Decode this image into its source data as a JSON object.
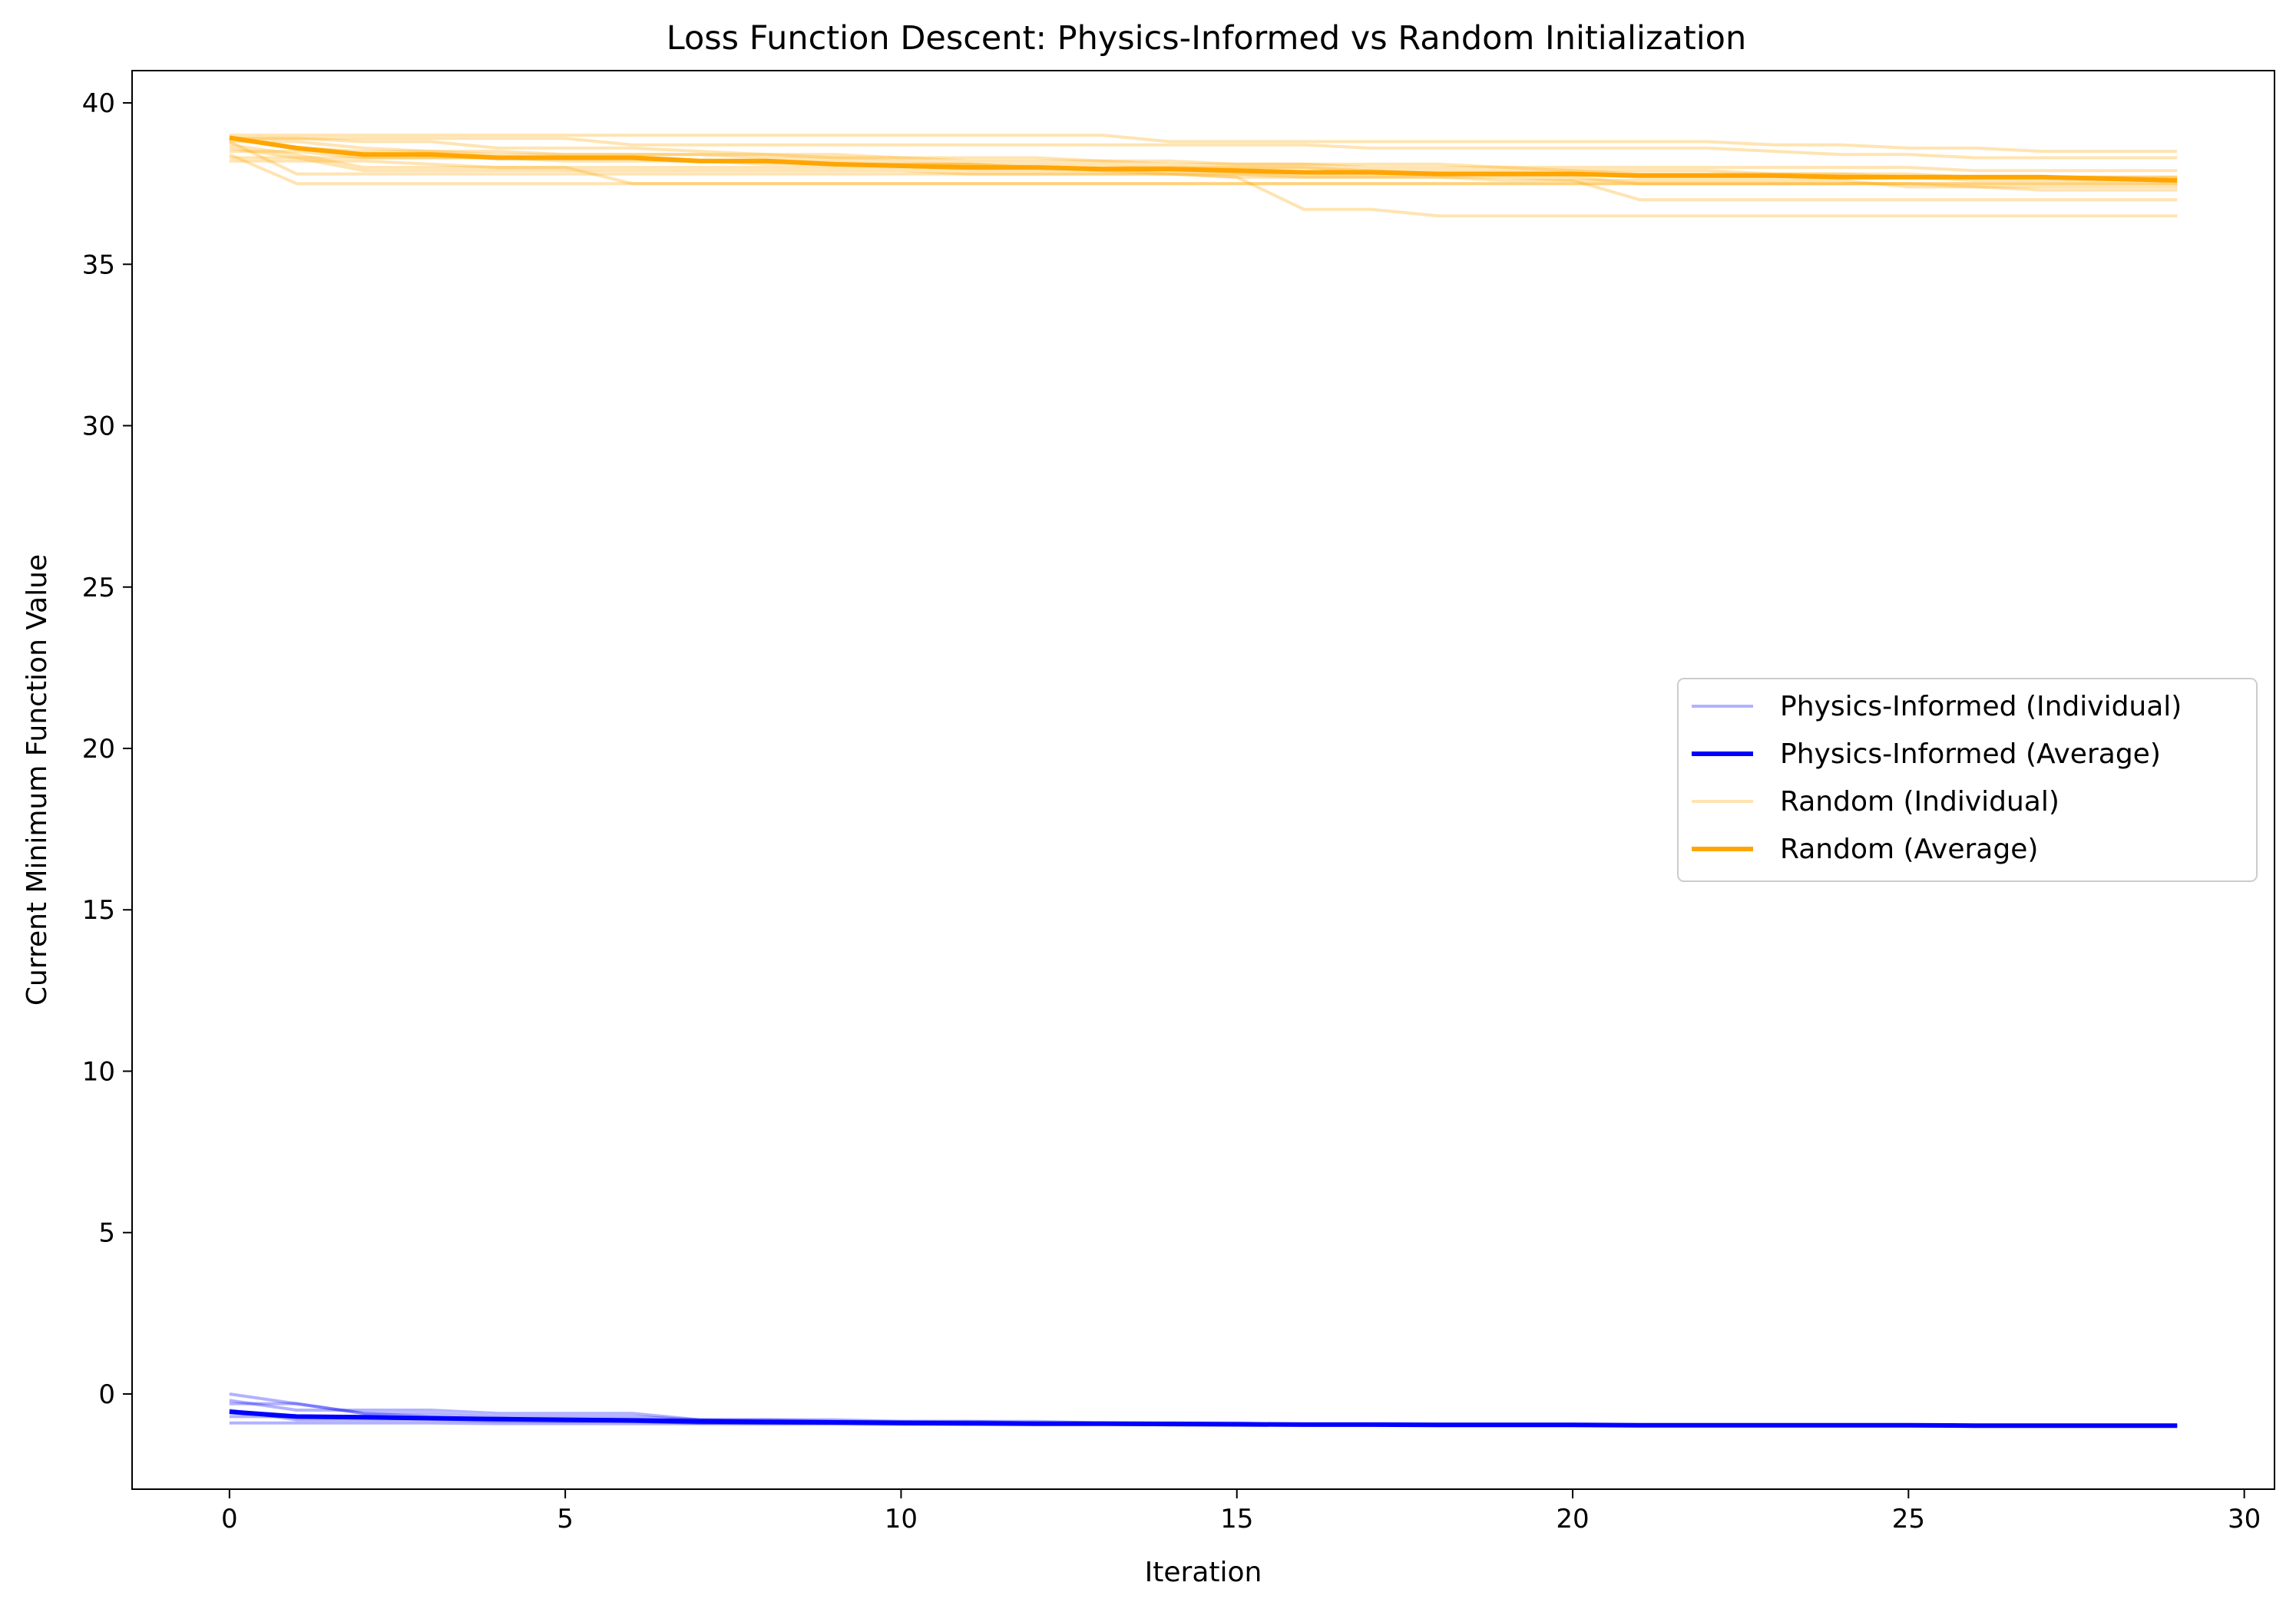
{
  "chart_data": {
    "type": "line",
    "title": "Loss Function Descent: Physics-Informed vs Random Initialization",
    "xlabel": "Iteration",
    "ylabel": "Current Minimum Function Value",
    "xlim": [
      -1.45,
      30.45
    ],
    "ylim": [
      -2.95,
      41.0
    ],
    "xticks": [
      0,
      5,
      10,
      15,
      20,
      25,
      30
    ],
    "yticks": [
      0,
      5,
      10,
      15,
      20,
      25,
      30,
      35,
      40
    ],
    "grid": false,
    "legend_position": "center-right",
    "colors": {
      "physics": "#0000ff",
      "physics_individual": "#aab0ff",
      "random": "#ffa500",
      "random_individual": "#ffdfa6"
    },
    "legend": [
      {
        "label": "Physics-Informed (Individual)",
        "series": "physics_individual"
      },
      {
        "label": "Physics-Informed (Average)",
        "series": "physics_average"
      },
      {
        "label": "Random (Individual)",
        "series": "random_individual"
      },
      {
        "label": "Random (Average)",
        "series": "random_average"
      }
    ],
    "x": [
      0,
      1,
      2,
      3,
      4,
      5,
      6,
      7,
      8,
      9,
      10,
      11,
      12,
      13,
      14,
      15,
      16,
      17,
      18,
      19,
      20,
      21,
      22,
      23,
      24,
      25,
      26,
      27,
      28,
      29
    ],
    "series": [
      {
        "name": "Random (Individual)",
        "group": "random_individual",
        "values": [
          39.0,
          39.0,
          39.0,
          39.0,
          39.0,
          39.0,
          39.0,
          39.0,
          39.0,
          39.0,
          39.0,
          39.0,
          39.0,
          39.0,
          38.8,
          38.8,
          38.8,
          38.8,
          38.8,
          38.8,
          38.8,
          38.8,
          38.8,
          38.7,
          38.7,
          38.6,
          38.6,
          38.5,
          38.5,
          38.5
        ]
      },
      {
        "name": "Random (Individual)",
        "group": "random_individual",
        "values": [
          38.9,
          38.9,
          38.9,
          38.9,
          38.9,
          38.9,
          38.7,
          38.7,
          38.7,
          38.7,
          38.7,
          38.7,
          38.7,
          38.7,
          38.7,
          38.7,
          38.7,
          38.6,
          38.6,
          38.6,
          38.6,
          38.6,
          38.6,
          38.5,
          38.4,
          38.4,
          38.3,
          38.3,
          38.3,
          38.3
        ]
      },
      {
        "name": "Random (Individual)",
        "group": "random_individual",
        "values": [
          38.8,
          38.8,
          38.6,
          38.5,
          38.4,
          38.4,
          38.4,
          38.4,
          38.4,
          38.4,
          38.3,
          38.3,
          38.3,
          38.2,
          38.2,
          38.1,
          38.1,
          38.1,
          38.1,
          38.0,
          38.0,
          38.0,
          38.0,
          38.0,
          38.0,
          38.0,
          37.9,
          37.9,
          37.9,
          37.9
        ]
      },
      {
        "name": "Random (Individual)",
        "group": "random_individual",
        "values": [
          38.6,
          38.3,
          38.3,
          38.3,
          38.3,
          38.3,
          38.3,
          38.2,
          38.2,
          38.2,
          38.1,
          38.1,
          38.1,
          38.1,
          38.0,
          38.0,
          38.0,
          37.9,
          37.9,
          37.9,
          37.9,
          37.8,
          37.8,
          37.8,
          37.8,
          37.7,
          37.7,
          37.7,
          37.7,
          37.7
        ]
      },
      {
        "name": "Random (Individual)",
        "group": "random_individual",
        "values": [
          38.2,
          38.2,
          38.2,
          38.1,
          38.0,
          38.0,
          38.0,
          38.0,
          38.0,
          38.0,
          38.0,
          37.9,
          37.9,
          37.9,
          37.9,
          37.8,
          37.8,
          37.8,
          37.8,
          37.8,
          37.8,
          37.7,
          37.7,
          37.7,
          37.7,
          37.7,
          37.6,
          37.6,
          37.6,
          37.6
        ]
      },
      {
        "name": "Random (Individual)",
        "group": "random_individual",
        "values": [
          38.4,
          37.5,
          37.5,
          37.5,
          37.5,
          37.5,
          37.5,
          37.5,
          37.5,
          37.5,
          37.5,
          37.5,
          37.5,
          37.5,
          37.5,
          37.5,
          37.5,
          37.5,
          37.5,
          37.5,
          37.5,
          37.5,
          37.5,
          37.5,
          37.5,
          37.5,
          37.5,
          37.5,
          37.5,
          37.5
        ]
      },
      {
        "name": "Random (Individual)",
        "group": "random_individual",
        "values": [
          38.7,
          38.4,
          38.0,
          38.0,
          38.0,
          38.0,
          37.5,
          37.5,
          37.5,
          37.5,
          37.5,
          37.5,
          37.5,
          37.5,
          37.5,
          37.5,
          37.5,
          37.5,
          37.5,
          37.5,
          37.5,
          37.5,
          37.5,
          37.5,
          37.5,
          37.5,
          37.5,
          37.5,
          37.5,
          37.5
        ]
      },
      {
        "name": "Random (Individual)",
        "group": "random_individual",
        "values": [
          38.9,
          38.9,
          38.8,
          38.8,
          38.6,
          38.6,
          38.6,
          38.5,
          38.4,
          38.3,
          38.2,
          38.1,
          38.0,
          37.9,
          37.8,
          37.7,
          36.7,
          36.7,
          36.5,
          36.5,
          36.5,
          36.5,
          36.5,
          36.5,
          36.5,
          36.5,
          36.5,
          36.5,
          36.5,
          36.5
        ]
      },
      {
        "name": "Random (Individual)",
        "group": "random_individual",
        "values": [
          38.5,
          38.5,
          38.3,
          38.3,
          38.3,
          38.2,
          38.2,
          38.2,
          38.1,
          38.1,
          38.1,
          38.1,
          38.0,
          38.0,
          38.0,
          38.0,
          38.0,
          37.9,
          37.8,
          37.8,
          37.7,
          37.5,
          37.5,
          37.5,
          37.5,
          37.5,
          37.4,
          37.4,
          37.4,
          37.4
        ]
      },
      {
        "name": "Random (Individual)",
        "group": "random_individual",
        "values": [
          38.3,
          38.3,
          37.9,
          37.9,
          37.9,
          37.9,
          37.9,
          37.9,
          37.9,
          37.9,
          37.9,
          37.8,
          37.8,
          37.8,
          37.8,
          37.8,
          37.7,
          37.7,
          37.7,
          37.6,
          37.6,
          37.0,
          37.0,
          37.0,
          37.0,
          37.0,
          37.0,
          37.0,
          37.0,
          37.0
        ]
      },
      {
        "name": "Random (Individual)",
        "group": "random_individual",
        "values": [
          38.8,
          37.8,
          37.8,
          37.8,
          37.8,
          37.8,
          37.8,
          37.8,
          37.8,
          37.8,
          37.8,
          37.8,
          37.8,
          37.8,
          37.8,
          37.7,
          37.7,
          37.7,
          37.7,
          37.7,
          37.6,
          37.6,
          37.6,
          37.6,
          37.6,
          37.4,
          37.4,
          37.3,
          37.3,
          37.3
        ]
      },
      {
        "name": "Random (Individual)",
        "group": "random_individual",
        "values": [
          38.9,
          38.6,
          38.5,
          38.5,
          38.5,
          38.4,
          38.4,
          38.4,
          38.3,
          38.3,
          38.3,
          38.2,
          38.2,
          38.2,
          38.1,
          38.1,
          38.1,
          38.0,
          38.0,
          38.0,
          37.9,
          37.9,
          37.9,
          37.8,
          37.8,
          37.8,
          37.7,
          37.7,
          37.7,
          37.7
        ]
      },
      {
        "name": "Physics-Informed (Individual)",
        "group": "physics_individual",
        "values": [
          0.0,
          -0.3,
          -0.6,
          -0.7,
          -0.8,
          -0.8,
          -0.85,
          -0.9,
          -0.9,
          -0.9,
          -0.92,
          -0.92,
          -0.93,
          -0.93,
          -0.94,
          -0.95,
          -0.95,
          -0.96,
          -0.96,
          -0.97,
          -0.97,
          -0.97,
          -0.97,
          -0.98,
          -0.98,
          -0.98,
          -0.98,
          -0.98,
          -0.98,
          -0.98
        ]
      },
      {
        "name": "Physics-Informed (Individual)",
        "group": "physics_individual",
        "values": [
          -0.3,
          -0.3,
          -0.6,
          -0.6,
          -0.7,
          -0.7,
          -0.7,
          -0.8,
          -0.8,
          -0.8,
          -0.85,
          -0.85,
          -0.85,
          -0.9,
          -0.9,
          -0.9,
          -0.95,
          -0.95,
          -0.95,
          -0.95,
          -0.97,
          -0.97,
          -0.97,
          -0.97,
          -0.98,
          -0.98,
          -0.98,
          -0.98,
          -0.98,
          -0.98
        ]
      },
      {
        "name": "Physics-Informed (Individual)",
        "group": "physics_individual",
        "values": [
          -0.5,
          -0.8,
          -0.8,
          -0.8,
          -0.85,
          -0.85,
          -0.85,
          -0.9,
          -0.9,
          -0.9,
          -0.9,
          -0.9,
          -0.9,
          -0.92,
          -0.92,
          -0.92,
          -0.95,
          -0.95,
          -0.95,
          -0.96,
          -0.96,
          -0.96,
          -0.97,
          -0.97,
          -0.97,
          -0.97,
          -0.98,
          -0.98,
          -0.98,
          -0.98
        ]
      },
      {
        "name": "Physics-Informed (Individual)",
        "group": "physics_individual",
        "values": [
          -0.9,
          -0.9,
          -0.9,
          -0.9,
          -0.92,
          -0.92,
          -0.92,
          -0.92,
          -0.93,
          -0.93,
          -0.94,
          -0.94,
          -0.95,
          -0.95,
          -0.95,
          -0.95,
          -0.96,
          -0.96,
          -0.96,
          -0.97,
          -0.97,
          -0.97,
          -0.97,
          -0.98,
          -0.98,
          -0.98,
          -0.98,
          -0.98,
          -0.98,
          -0.98
        ]
      },
      {
        "name": "Physics-Informed (Individual)",
        "group": "physics_individual",
        "values": [
          -0.2,
          -0.5,
          -0.5,
          -0.5,
          -0.6,
          -0.6,
          -0.6,
          -0.8,
          -0.8,
          -0.85,
          -0.85,
          -0.85,
          -0.9,
          -0.9,
          -0.9,
          -0.92,
          -0.93,
          -0.94,
          -0.95,
          -0.96,
          -0.96,
          -0.97,
          -0.97,
          -0.97,
          -0.98,
          -0.98,
          -0.98,
          -0.98,
          -0.98,
          -0.98
        ]
      },
      {
        "name": "Physics-Informed (Individual)",
        "group": "physics_individual",
        "values": [
          -0.7,
          -0.7,
          -0.7,
          -0.75,
          -0.75,
          -0.8,
          -0.8,
          -0.8,
          -0.85,
          -0.85,
          -0.88,
          -0.9,
          -0.9,
          -0.92,
          -0.93,
          -0.94,
          -0.95,
          -0.96,
          -0.96,
          -0.97,
          -0.97,
          -0.97,
          -0.98,
          -0.98,
          -0.98,
          -0.98,
          -0.98,
          -0.98,
          -0.98,
          -0.98
        ]
      },
      {
        "name": "Random (Average)",
        "group": "random_average",
        "values": [
          38.92,
          38.6,
          38.4,
          38.4,
          38.3,
          38.3,
          38.3,
          38.2,
          38.2,
          38.1,
          38.05,
          38.0,
          38.0,
          37.95,
          37.95,
          37.9,
          37.85,
          37.85,
          37.8,
          37.8,
          37.8,
          37.75,
          37.75,
          37.75,
          37.7,
          37.7,
          37.7,
          37.7,
          37.65,
          37.6
        ]
      },
      {
        "name": "Physics-Informed (Average)",
        "group": "physics_average",
        "values": [
          -0.55,
          -0.7,
          -0.72,
          -0.75,
          -0.78,
          -0.8,
          -0.82,
          -0.85,
          -0.87,
          -0.88,
          -0.9,
          -0.91,
          -0.92,
          -0.92,
          -0.93,
          -0.94,
          -0.95,
          -0.95,
          -0.96,
          -0.96,
          -0.96,
          -0.97,
          -0.97,
          -0.97,
          -0.97,
          -0.97,
          -0.98,
          -0.98,
          -0.98,
          -0.98
        ]
      }
    ]
  }
}
